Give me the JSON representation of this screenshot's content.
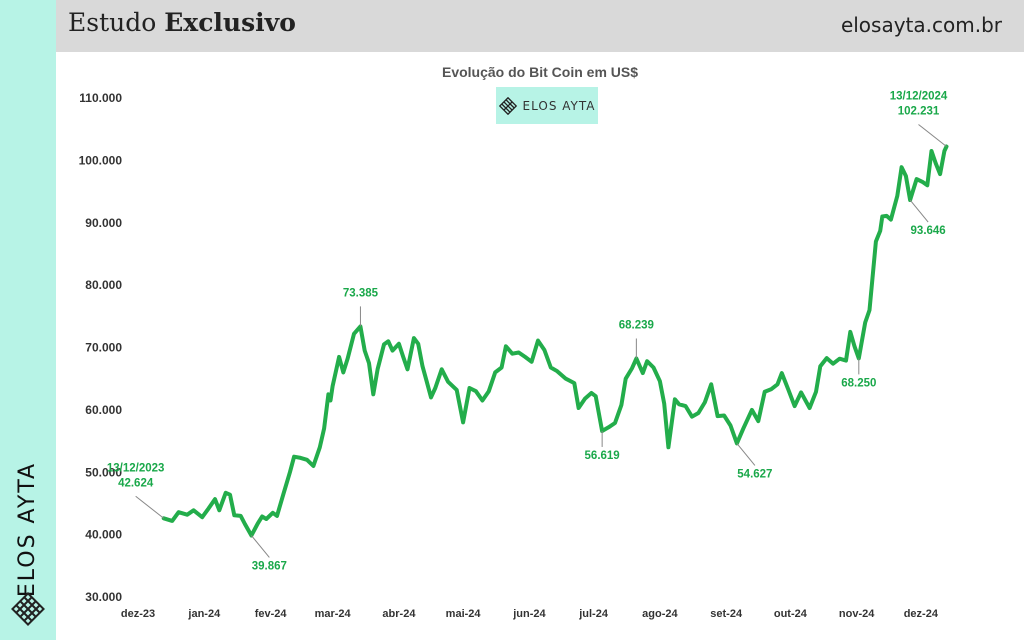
{
  "header": {
    "title_regular": "Estudo",
    "title_bold": "Exclusivo",
    "url": "elosayta.com.br"
  },
  "sidebar": {
    "brand": "ELOS AYTA",
    "logo_icon": "lattice-logo-icon"
  },
  "badge": {
    "text": "ELOS AYTA",
    "logo_icon": "lattice-logo-icon",
    "bg": "#b7f3e6"
  },
  "colors": {
    "line": "#23ad4b",
    "label": "#1aa84a",
    "accent_band": "#b7f3e6",
    "header_bg": "#d9d9d9"
  },
  "chart_data": {
    "type": "line",
    "title": "Evolução do Bit Coin em US$",
    "ylim": [
      30000,
      110000
    ],
    "yticks": [
      30000,
      40000,
      50000,
      60000,
      70000,
      80000,
      90000,
      100000,
      110000
    ],
    "ytick_labels": [
      "30.000",
      "40.000",
      "50.000",
      "60.000",
      "70.000",
      "80.000",
      "90.000",
      "100.000",
      "110.000"
    ],
    "x_range": [
      "2023-12-01",
      "2024-12-31"
    ],
    "xtick_labels": [
      "dez-23",
      "jan-24",
      "fev-24",
      "mar-24",
      "abr-24",
      "mai-24",
      "jun-24",
      "jul-24",
      "ago-24",
      "set-24",
      "out-24",
      "nov-24",
      "dez-24"
    ],
    "xtick_dates": [
      "2023-12-01",
      "2024-01-01",
      "2024-02-01",
      "2024-03-01",
      "2024-04-01",
      "2024-05-01",
      "2024-06-01",
      "2024-07-01",
      "2024-08-01",
      "2024-09-01",
      "2024-10-01",
      "2024-11-01",
      "2024-12-01"
    ],
    "grid": false,
    "series": [
      {
        "points": [
          [
            "2023-12-13",
            42624
          ],
          [
            "2023-12-17",
            42200
          ],
          [
            "2023-12-20",
            43600
          ],
          [
            "2023-12-24",
            43200
          ],
          [
            "2023-12-27",
            43900
          ],
          [
            "2023-12-31",
            42800
          ],
          [
            "2024-01-03",
            44200
          ],
          [
            "2024-01-06",
            45700
          ],
          [
            "2024-01-08",
            43900
          ],
          [
            "2024-01-11",
            46700
          ],
          [
            "2024-01-13",
            46400
          ],
          [
            "2024-01-15",
            43100
          ],
          [
            "2024-01-18",
            43000
          ],
          [
            "2024-01-20",
            41700
          ],
          [
            "2024-01-23",
            39867
          ],
          [
            "2024-01-26",
            41800
          ],
          [
            "2024-01-28",
            42900
          ],
          [
            "2024-01-30",
            42500
          ],
          [
            "2024-02-02",
            43500
          ],
          [
            "2024-02-04",
            43000
          ],
          [
            "2024-02-07",
            46500
          ],
          [
            "2024-02-10",
            50000
          ],
          [
            "2024-02-12",
            52500
          ],
          [
            "2024-02-15",
            52300
          ],
          [
            "2024-02-18",
            52000
          ],
          [
            "2024-02-21",
            51000
          ],
          [
            "2024-02-24",
            54000
          ],
          [
            "2024-02-26",
            57000
          ],
          [
            "2024-02-28",
            62500
          ],
          [
            "2024-02-29",
            61500
          ],
          [
            "2024-03-01",
            63800
          ],
          [
            "2024-03-04",
            68500
          ],
          [
            "2024-03-06",
            66000
          ],
          [
            "2024-03-08",
            68200
          ],
          [
            "2024-03-11",
            72200
          ],
          [
            "2024-03-14",
            73385
          ],
          [
            "2024-03-16",
            69500
          ],
          [
            "2024-03-18",
            67500
          ],
          [
            "2024-03-20",
            62500
          ],
          [
            "2024-03-22",
            66500
          ],
          [
            "2024-03-25",
            70500
          ],
          [
            "2024-03-27",
            71000
          ],
          [
            "2024-03-29",
            69500
          ],
          [
            "2024-04-01",
            70600
          ],
          [
            "2024-04-03",
            68500
          ],
          [
            "2024-04-05",
            66500
          ],
          [
            "2024-04-08",
            71500
          ],
          [
            "2024-04-10",
            70600
          ],
          [
            "2024-04-12",
            67000
          ],
          [
            "2024-04-14",
            64500
          ],
          [
            "2024-04-16",
            62000
          ],
          [
            "2024-04-18",
            63500
          ],
          [
            "2024-04-21",
            66500
          ],
          [
            "2024-04-24",
            64500
          ],
          [
            "2024-04-28",
            63200
          ],
          [
            "2024-05-01",
            58000
          ],
          [
            "2024-05-04",
            63500
          ],
          [
            "2024-05-07",
            63000
          ],
          [
            "2024-05-10",
            61500
          ],
          [
            "2024-05-13",
            63000
          ],
          [
            "2024-05-16",
            66000
          ],
          [
            "2024-05-19",
            66800
          ],
          [
            "2024-05-21",
            70200
          ],
          [
            "2024-05-24",
            69000
          ],
          [
            "2024-05-27",
            69200
          ],
          [
            "2024-05-30",
            68500
          ],
          [
            "2024-06-02",
            67700
          ],
          [
            "2024-06-05",
            71100
          ],
          [
            "2024-06-08",
            69600
          ],
          [
            "2024-06-11",
            66800
          ],
          [
            "2024-06-14",
            66200
          ],
          [
            "2024-06-18",
            65000
          ],
          [
            "2024-06-22",
            64300
          ],
          [
            "2024-06-24",
            60300
          ],
          [
            "2024-06-27",
            61800
          ],
          [
            "2024-06-30",
            62700
          ],
          [
            "2024-07-02",
            62200
          ],
          [
            "2024-07-05",
            56619
          ],
          [
            "2024-07-08",
            57200
          ],
          [
            "2024-07-11",
            57900
          ],
          [
            "2024-07-14",
            60800
          ],
          [
            "2024-07-16",
            65000
          ],
          [
            "2024-07-19",
            66700
          ],
          [
            "2024-07-21",
            68239
          ],
          [
            "2024-07-24",
            65900
          ],
          [
            "2024-07-26",
            67800
          ],
          [
            "2024-07-29",
            66800
          ],
          [
            "2024-08-01",
            64600
          ],
          [
            "2024-08-03",
            61000
          ],
          [
            "2024-08-05",
            54000
          ],
          [
            "2024-08-08",
            61700
          ],
          [
            "2024-08-10",
            60900
          ],
          [
            "2024-08-13",
            60600
          ],
          [
            "2024-08-16",
            58900
          ],
          [
            "2024-08-19",
            59500
          ],
          [
            "2024-08-22",
            61200
          ],
          [
            "2024-08-25",
            64100
          ],
          [
            "2024-08-28",
            59000
          ],
          [
            "2024-08-31",
            59100
          ],
          [
            "2024-09-03",
            57500
          ],
          [
            "2024-09-06",
            54627
          ],
          [
            "2024-09-09",
            57000
          ],
          [
            "2024-09-13",
            60000
          ],
          [
            "2024-09-16",
            58200
          ],
          [
            "2024-09-19",
            62900
          ],
          [
            "2024-09-22",
            63300
          ],
          [
            "2024-09-25",
            64100
          ],
          [
            "2024-09-27",
            65900
          ],
          [
            "2024-09-30",
            63300
          ],
          [
            "2024-10-03",
            60600
          ],
          [
            "2024-10-06",
            62800
          ],
          [
            "2024-10-10",
            60300
          ],
          [
            "2024-10-13",
            62900
          ],
          [
            "2024-10-15",
            67000
          ],
          [
            "2024-10-18",
            68300
          ],
          [
            "2024-10-21",
            67400
          ],
          [
            "2024-10-24",
            68200
          ],
          [
            "2024-10-27",
            67900
          ],
          [
            "2024-10-29",
            72500
          ],
          [
            "2024-10-31",
            70200
          ],
          [
            "2024-11-02",
            68250
          ],
          [
            "2024-11-05",
            74000
          ],
          [
            "2024-11-07",
            76000
          ],
          [
            "2024-11-10",
            87000
          ],
          [
            "2024-11-12",
            88700
          ],
          [
            "2024-11-13",
            91000
          ],
          [
            "2024-11-15",
            91100
          ],
          [
            "2024-11-17",
            90500
          ],
          [
            "2024-11-20",
            94300
          ],
          [
            "2024-11-22",
            98900
          ],
          [
            "2024-11-24",
            97500
          ],
          [
            "2024-11-26",
            93646
          ],
          [
            "2024-11-29",
            97000
          ],
          [
            "2024-12-02",
            96500
          ],
          [
            "2024-12-04",
            96000
          ],
          [
            "2024-12-06",
            101500
          ],
          [
            "2024-12-08",
            99500
          ],
          [
            "2024-12-10",
            97800
          ],
          [
            "2024-12-12",
            101500
          ],
          [
            "2024-12-13",
            102231
          ]
        ]
      }
    ],
    "annotations": [
      {
        "date": "2023-12-13",
        "value": 42624,
        "lines": [
          "13/12/2023",
          "42.624"
        ],
        "position": "above-left"
      },
      {
        "date": "2024-01-23",
        "value": 39867,
        "lines": [
          "39.867"
        ],
        "position": "below-right"
      },
      {
        "date": "2024-03-14",
        "value": 73385,
        "lines": [
          "73.385"
        ],
        "position": "above"
      },
      {
        "date": "2024-07-05",
        "value": 56619,
        "lines": [
          "56.619"
        ],
        "position": "below"
      },
      {
        "date": "2024-07-21",
        "value": 68239,
        "lines": [
          "68.239"
        ],
        "position": "above"
      },
      {
        "date": "2024-09-06",
        "value": 54627,
        "lines": [
          "54.627"
        ],
        "position": "below-right"
      },
      {
        "date": "2024-11-02",
        "value": 68250,
        "lines": [
          "68.250"
        ],
        "position": "below"
      },
      {
        "date": "2024-11-26",
        "value": 93646,
        "lines": [
          "93.646"
        ],
        "position": "below-right"
      },
      {
        "date": "2024-12-13",
        "value": 102231,
        "lines": [
          "13/12/2024",
          "102.231"
        ],
        "position": "above-left"
      }
    ]
  }
}
